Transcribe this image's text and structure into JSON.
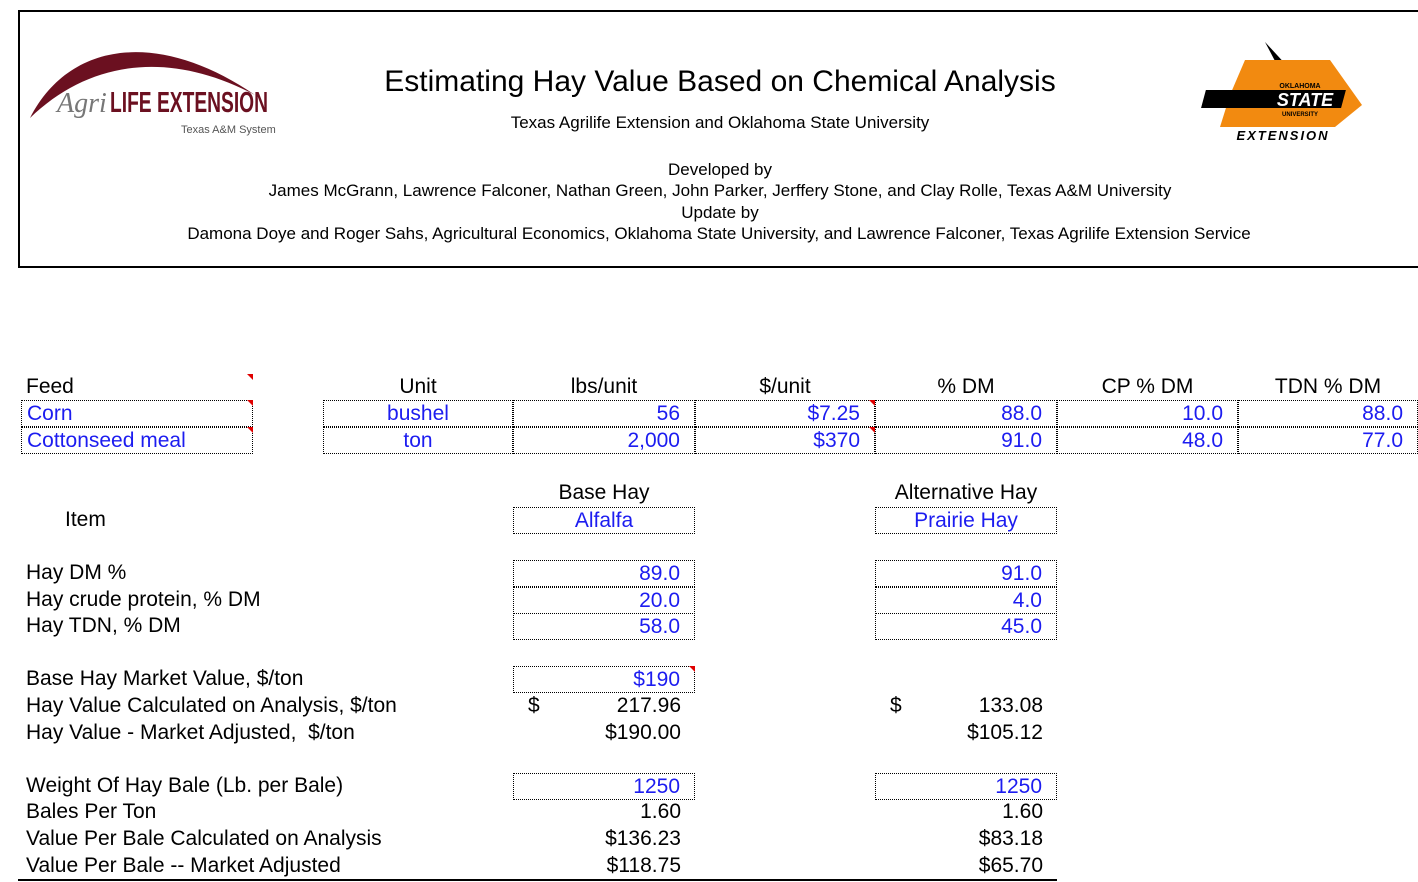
{
  "header": {
    "title": "Estimating Hay Value Based on Chemical Analysis",
    "subtitle": "Texas Agrilife Extension and Oklahoma State University",
    "developed_label": "Developed by",
    "developers": "James McGrann, Lawrence Falconer, Nathan Green, John Parker, Jerffery Stone, and Clay Rolle, Texas A&M University",
    "update_label": "Update by",
    "updaters": "Damona Doye and Roger Sahs, Agricultural Economics, Oklahoma State University, and Lawrence Falconer, Texas Agrilife Extension Service",
    "logo_left": {
      "agri": "Agri",
      "brand": "LIFE EXTENSION",
      "system": "Texas A&M System"
    },
    "logo_right": {
      "top": "OKLAHOMA",
      "main": "STATE",
      "sub": "UNIVERSITY",
      "bottom": "EXTENSION"
    }
  },
  "feeds": {
    "columns": [
      "Feed",
      "Unit",
      "lbs/unit",
      "$/unit",
      "% DM",
      "CP % DM",
      "TDN % DM"
    ],
    "rows": [
      [
        "Corn",
        "bushel",
        "56",
        "$7.25",
        "88.0",
        "10.0",
        "88.0"
      ],
      [
        "Cottonseed meal",
        "ton",
        "2,000",
        "$370",
        "91.0",
        "48.0",
        "77.0"
      ]
    ]
  },
  "hay": {
    "columns": [
      "Base Hay",
      "Alternative Hay"
    ],
    "item_label": "Item",
    "names": [
      "Alfalfa",
      "Prairie Hay"
    ],
    "rows": [
      {
        "label": "Hay DM %",
        "base": "89.0",
        "alt": "91.0"
      },
      {
        "label": "Hay crude protein, % DM",
        "base": "20.0",
        "alt": "4.0"
      },
      {
        "label": "Hay TDN, % DM",
        "base": "58.0",
        "alt": "45.0"
      },
      {
        "label": "Base Hay Market Value, $/ton",
        "base": "$190"
      },
      {
        "label": "Hay Value Calculated on Analysis, $/ton",
        "base_currency": "$",
        "base": "217.96",
        "alt_currency": "$",
        "alt": "133.08"
      },
      {
        "label": "Hay Value - Market Adjusted,  $/ton",
        "base": "$190.00",
        "alt": "$105.12"
      },
      {
        "label": "Weight Of Hay Bale (Lb. per Bale)",
        "base": "1250",
        "alt": "1250"
      },
      {
        "label": "Bales Per Ton",
        "base": "1.60",
        "alt": "1.60"
      },
      {
        "label": "Value Per Bale Calculated on Analysis",
        "base": "$136.23",
        "alt": "$83.18"
      },
      {
        "label": "Value Per Bale -- Market Adjusted",
        "base": "$118.75",
        "alt": "$65.70"
      }
    ]
  }
}
